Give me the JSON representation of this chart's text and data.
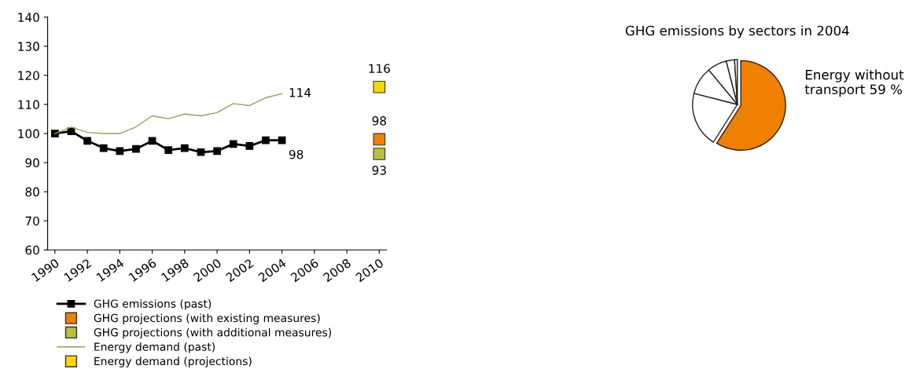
{
  "chart_data": [
    {
      "type": "line",
      "xlim": [
        1989.55,
        2010.45
      ],
      "xticks": [
        1990,
        1992,
        1994,
        1996,
        1998,
        2000,
        2002,
        2004,
        2006,
        2008,
        2010
      ],
      "ylim": [
        60,
        140
      ],
      "yticks": [
        60,
        70,
        80,
        90,
        100,
        110,
        120,
        130,
        140
      ],
      "grid": false,
      "legend": "bottom",
      "series": [
        {
          "name": "GHG emissions (past)",
          "type": "line",
          "marker": "square",
          "color": "#000000",
          "x": [
            1990,
            1991,
            1992,
            1993,
            1994,
            1995,
            1996,
            1997,
            1998,
            1999,
            2000,
            2001,
            2002,
            2003,
            2004
          ],
          "values": [
            100,
            100.8,
            97.5,
            95,
            94,
            94.7,
            97.5,
            94.3,
            95,
            93.6,
            94,
            96.4,
            95.7,
            97.7,
            97.7
          ],
          "value_labels": [
            null,
            null,
            null,
            null,
            null,
            null,
            null,
            null,
            null,
            null,
            null,
            null,
            null,
            null,
            "98"
          ]
        },
        {
          "name": "GHG projections (with existing measures)",
          "type": "scatter",
          "marker": "square",
          "color": "#f08000",
          "x": [
            2010
          ],
          "values": [
            98
          ],
          "value_labels": [
            "98"
          ]
        },
        {
          "name": "GHG projections (with additional measures)",
          "type": "scatter",
          "marker": "square",
          "color": "#b5c33a",
          "x": [
            2010
          ],
          "values": [
            93
          ],
          "value_labels": [
            "93"
          ]
        },
        {
          "name": "Energy demand (past)",
          "type": "line",
          "marker": "none",
          "color": "#98a05a",
          "x": [
            1990,
            1991,
            1992,
            1993,
            1994,
            1995,
            1996,
            1997,
            1998,
            1999,
            2000,
            2001,
            2002,
            2003,
            2004
          ],
          "values": [
            100,
            102.2,
            100.4,
            100,
            100,
            102.3,
            106.1,
            105.1,
            106.7,
            106.1,
            107.2,
            110.3,
            109.6,
            112.3,
            113.7
          ],
          "value_labels": [
            null,
            null,
            null,
            null,
            null,
            null,
            null,
            null,
            null,
            null,
            null,
            null,
            null,
            null,
            "114"
          ]
        },
        {
          "name": "Energy demand (projections)",
          "type": "scatter",
          "marker": "square",
          "color": "#ffd700",
          "x": [
            2010
          ],
          "values": [
            116
          ],
          "value_labels": [
            "116"
          ]
        }
      ]
    },
    {
      "type": "pie",
      "title": "GHG emissions by sectors in 2004",
      "categories": [
        "Energy without transport",
        null,
        null,
        null,
        null,
        null
      ],
      "values": [
        59,
        20,
        10,
        7,
        3,
        1
      ],
      "colors": [
        "#f08000",
        "#ffffff",
        "#ffffff",
        "#ffffff",
        "#ffffff",
        "#ffffff"
      ],
      "value_labels": [
        "59 %",
        null,
        null,
        null,
        null,
        null
      ]
    }
  ]
}
